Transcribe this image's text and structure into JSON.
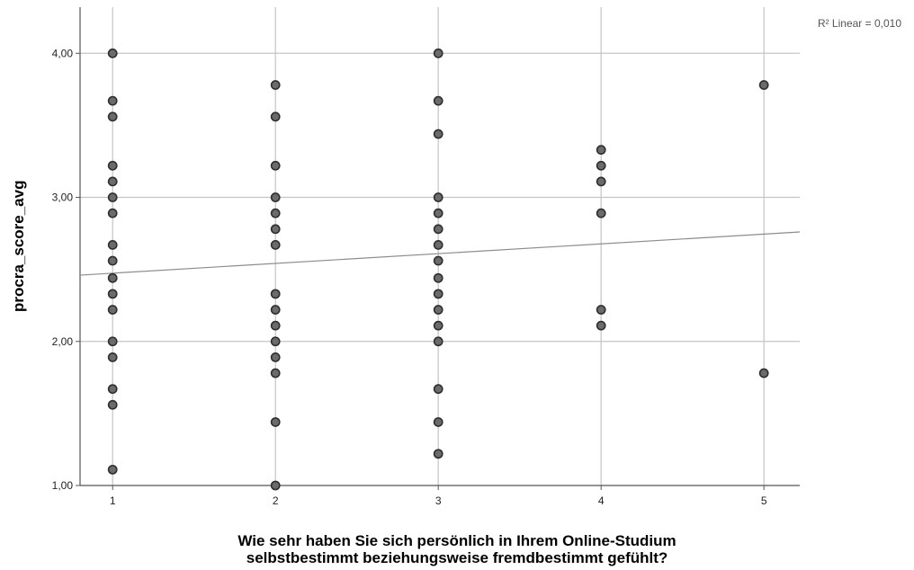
{
  "chart_data": {
    "type": "scatter",
    "title": "",
    "fit_label": "R² Linear = 0,010",
    "xlabel_lines": [
      "Wie sehr haben Sie sich persönlich in Ihrem Online-Studium",
      "selbstbestimmt beziehungsweise fremdbestimmt gefühlt?"
    ],
    "ylabel": "procra_score_avg",
    "xlim": [
      0.8,
      5.22
    ],
    "ylim": [
      1.0,
      4.32
    ],
    "x_ticks": [
      1,
      2,
      3,
      4,
      5
    ],
    "x_tick_labels": [
      "1",
      "2",
      "3",
      "4",
      "5"
    ],
    "y_ticks": [
      1.0,
      2.0,
      3.0,
      4.0
    ],
    "y_tick_labels": [
      "1,00",
      "2,00",
      "3,00",
      "4,00"
    ],
    "grid": true,
    "fit_line": {
      "x": [
        0.8,
        5.22
      ],
      "y": [
        2.46,
        2.76
      ]
    },
    "points": [
      {
        "x": 1,
        "y": 4.0
      },
      {
        "x": 1,
        "y": 3.67
      },
      {
        "x": 1,
        "y": 3.56
      },
      {
        "x": 1,
        "y": 3.22
      },
      {
        "x": 1,
        "y": 3.11
      },
      {
        "x": 1,
        "y": 3.0
      },
      {
        "x": 1,
        "y": 2.89
      },
      {
        "x": 1,
        "y": 2.67
      },
      {
        "x": 1,
        "y": 2.56
      },
      {
        "x": 1,
        "y": 2.44
      },
      {
        "x": 1,
        "y": 2.33
      },
      {
        "x": 1,
        "y": 2.22
      },
      {
        "x": 1,
        "y": 2.0
      },
      {
        "x": 1,
        "y": 1.89
      },
      {
        "x": 1,
        "y": 1.67
      },
      {
        "x": 1,
        "y": 1.56
      },
      {
        "x": 1,
        "y": 1.11
      },
      {
        "x": 2,
        "y": 3.78
      },
      {
        "x": 2,
        "y": 3.56
      },
      {
        "x": 2,
        "y": 3.22
      },
      {
        "x": 2,
        "y": 3.0
      },
      {
        "x": 2,
        "y": 2.89
      },
      {
        "x": 2,
        "y": 2.78
      },
      {
        "x": 2,
        "y": 2.67
      },
      {
        "x": 2,
        "y": 2.33
      },
      {
        "x": 2,
        "y": 2.22
      },
      {
        "x": 2,
        "y": 2.11
      },
      {
        "x": 2,
        "y": 2.0
      },
      {
        "x": 2,
        "y": 1.89
      },
      {
        "x": 2,
        "y": 1.78
      },
      {
        "x": 2,
        "y": 1.44
      },
      {
        "x": 2,
        "y": 1.0
      },
      {
        "x": 3,
        "y": 4.0
      },
      {
        "x": 3,
        "y": 3.67
      },
      {
        "x": 3,
        "y": 3.44
      },
      {
        "x": 3,
        "y": 3.0
      },
      {
        "x": 3,
        "y": 2.89
      },
      {
        "x": 3,
        "y": 2.78
      },
      {
        "x": 3,
        "y": 2.67
      },
      {
        "x": 3,
        "y": 2.56
      },
      {
        "x": 3,
        "y": 2.44
      },
      {
        "x": 3,
        "y": 2.33
      },
      {
        "x": 3,
        "y": 2.22
      },
      {
        "x": 3,
        "y": 2.11
      },
      {
        "x": 3,
        "y": 2.0
      },
      {
        "x": 3,
        "y": 1.67
      },
      {
        "x": 3,
        "y": 1.44
      },
      {
        "x": 3,
        "y": 1.22
      },
      {
        "x": 4,
        "y": 3.33
      },
      {
        "x": 4,
        "y": 3.22
      },
      {
        "x": 4,
        "y": 3.11
      },
      {
        "x": 4,
        "y": 2.89
      },
      {
        "x": 4,
        "y": 2.22
      },
      {
        "x": 4,
        "y": 2.11
      },
      {
        "x": 5,
        "y": 3.78
      },
      {
        "x": 5,
        "y": 1.78
      }
    ],
    "colors": {
      "point_fill": "#6b6b6b",
      "point_stroke": "#2e2e2e",
      "grid": "#c4c4c4",
      "axis": "#555555",
      "fit_line": "#8c8c8c"
    }
  }
}
